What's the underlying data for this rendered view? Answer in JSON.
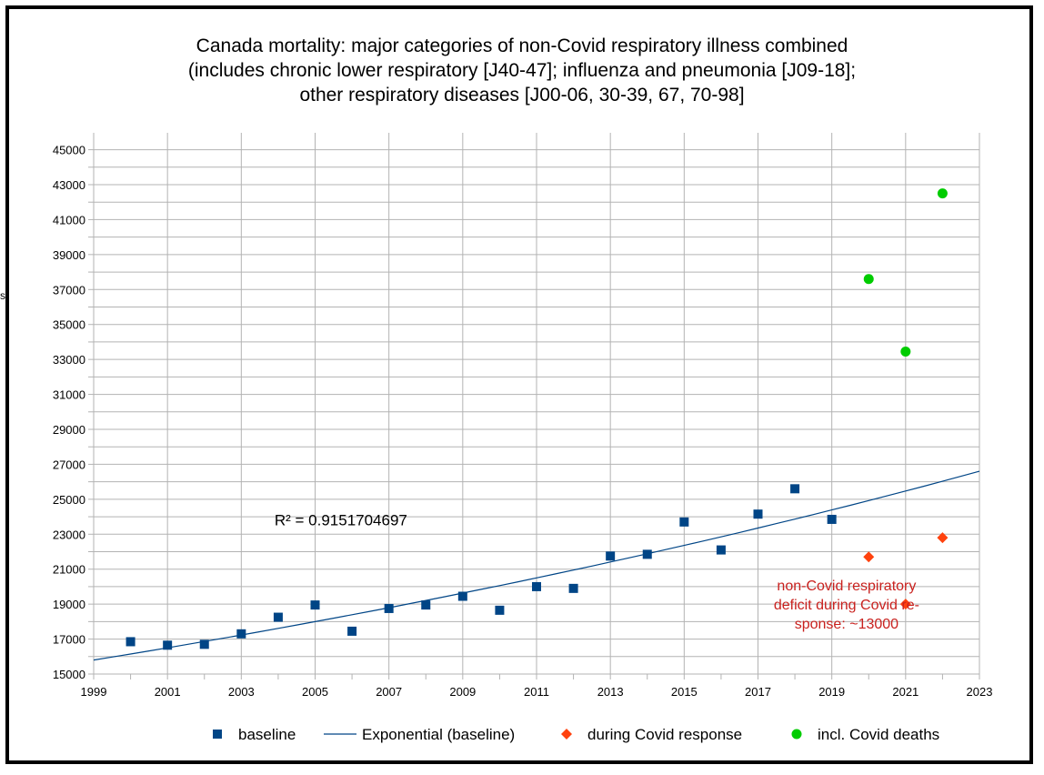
{
  "chart_data": {
    "type": "scatter",
    "title_lines": [
      "Canada mortality: major categories of non-Covid respiratory illness combined",
      "(includes chronic lower respiratory [J40-47]; influenza and pneumonia [J09-18];",
      "other respiratory diseases [J00-06, 30-39, 67, 70-98]"
    ],
    "xlim": [
      1999,
      2023
    ],
    "ylim": [
      15000,
      46000
    ],
    "x_ticks": [
      1999,
      2001,
      2003,
      2005,
      2007,
      2009,
      2011,
      2013,
      2015,
      2017,
      2019,
      2021,
      2023
    ],
    "y_ticks": [
      15000,
      17000,
      19000,
      21000,
      23000,
      25000,
      27000,
      29000,
      31000,
      33000,
      35000,
      37000,
      39000,
      41000,
      43000,
      45000
    ],
    "grid": true,
    "legend_position": "bottom",
    "series": [
      {
        "name": "baseline",
        "marker": "square",
        "color": "#004586",
        "x": [
          2000,
          2001,
          2002,
          2003,
          2004,
          2005,
          2006,
          2007,
          2008,
          2009,
          2010,
          2011,
          2012,
          2013,
          2014,
          2015,
          2016,
          2017,
          2018,
          2019
        ],
        "y": [
          16850,
          16650,
          16700,
          17300,
          18250,
          18950,
          17450,
          18750,
          18950,
          19450,
          18650,
          20000,
          19900,
          21750,
          21850,
          23700,
          22100,
          24150,
          25600,
          23850
        ]
      },
      {
        "name": "Exponential (baseline)",
        "line": "trend",
        "color": "#004586",
        "x": [
          1999,
          2023
        ],
        "y": [
          15800,
          26600
        ]
      },
      {
        "name": "during Covid response",
        "marker": "diamond",
        "color": "#ff420e",
        "x": [
          2020,
          2021,
          2022
        ],
        "y": [
          21700,
          19000,
          22800
        ]
      },
      {
        "name": "incl. Covid deaths",
        "marker": "circle",
        "color": "#00cc00",
        "x": [
          2020,
          2021,
          2022
        ],
        "y": [
          37600,
          33450,
          42500
        ]
      }
    ],
    "annotations": [
      {
        "text": "R² = 0.9151704697",
        "x": 2003.9,
        "y": 23500,
        "color": "#000000"
      },
      {
        "lines": [
          "non-Covid respiratory",
          "deficit during Covid re-",
          "sponse: ~13000"
        ],
        "x": 2019.4,
        "y": 19800,
        "color": "#c9211e"
      }
    ],
    "stray_mark": "s"
  }
}
